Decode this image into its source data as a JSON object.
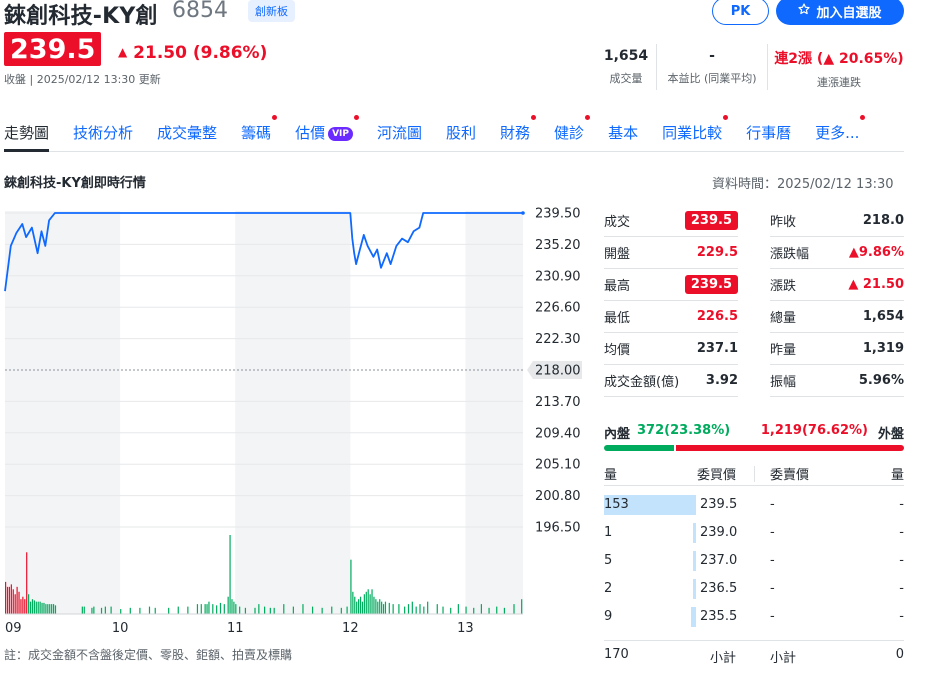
{
  "header": {
    "name": "錸創科技-KY創",
    "code": "6854",
    "board_badge": "創新板",
    "pk_label": "PK",
    "watch_label": "加入自選股",
    "price": "239.5",
    "change": "21.50 (9.86%)",
    "close_info": "收盤 | 2025/02/12 13:30 更新"
  },
  "summary": [
    {
      "value": "1,654",
      "label": "成交量"
    },
    {
      "value": "-",
      "label": "本益比 (同業平均)"
    },
    {
      "value": "連2漲 (▲ 20.65%)",
      "label": "連漲連跌"
    }
  ],
  "tabs": [
    {
      "label": "走勢圖",
      "active": true,
      "dot": false,
      "vip": false
    },
    {
      "label": "技術分析",
      "dot": false
    },
    {
      "label": "成交彙整",
      "dot": false
    },
    {
      "label": "籌碼",
      "dot": true
    },
    {
      "label": "估價",
      "dot": true,
      "vip": true
    },
    {
      "label": "河流圖",
      "dot": false
    },
    {
      "label": "股利",
      "dot": false
    },
    {
      "label": "財務",
      "dot": true
    },
    {
      "label": "健診",
      "dot": true
    },
    {
      "label": "基本",
      "dot": false
    },
    {
      "label": "同業比較",
      "dot": true
    },
    {
      "label": "行事曆",
      "dot": false
    },
    {
      "label": "更多...",
      "dot": true
    }
  ],
  "vip_label": "VIP",
  "section_title": "錸創科技-KY創即時行情",
  "data_time": "資料時間：2025/02/12 13:30",
  "chart_data": {
    "type": "line",
    "x_ticks": [
      "09",
      "10",
      "11",
      "12",
      "13"
    ],
    "y_ticks": [
      "239.50",
      "235.20",
      "230.90",
      "226.60",
      "222.30",
      "218.00",
      "213.70",
      "209.40",
      "205.10",
      "200.80",
      "196.50"
    ],
    "ylim": [
      196.5,
      239.5
    ],
    "reference_price": "218.00",
    "price_series": [
      [
        0,
        228.8
      ],
      [
        3,
        235.0
      ],
      [
        6,
        236.8
      ],
      [
        9,
        238.0
      ],
      [
        11,
        236.2
      ],
      [
        14,
        237.5
      ],
      [
        17,
        234.0
      ],
      [
        19,
        237.0
      ],
      [
        21,
        235.0
      ],
      [
        23,
        238.5
      ],
      [
        26,
        239.5
      ],
      [
        80,
        239.5
      ],
      [
        135,
        239.5
      ],
      [
        180,
        239.5
      ],
      [
        181,
        236.0
      ],
      [
        182,
        234.0
      ],
      [
        183,
        232.5
      ],
      [
        185,
        234.5
      ],
      [
        187,
        236.5
      ],
      [
        189,
        235.0
      ],
      [
        192,
        233.5
      ],
      [
        194,
        234.5
      ],
      [
        196,
        232.0
      ],
      [
        199,
        234.0
      ],
      [
        201,
        232.5
      ],
      [
        204,
        235.0
      ],
      [
        207,
        236.0
      ],
      [
        210,
        235.5
      ],
      [
        213,
        237.0
      ],
      [
        216,
        237.5
      ],
      [
        218,
        239.5
      ],
      [
        270,
        239.5
      ]
    ],
    "volume_series": [
      [
        0,
        26
      ],
      [
        1,
        22
      ],
      [
        2,
        22
      ],
      [
        3,
        24
      ],
      [
        4,
        20
      ],
      [
        5,
        16
      ],
      [
        6,
        22
      ],
      [
        7,
        18
      ],
      [
        8,
        12
      ],
      [
        9,
        14
      ],
      [
        10,
        12
      ],
      [
        11,
        50
      ],
      [
        12,
        16
      ],
      [
        13,
        10
      ],
      [
        14,
        12
      ],
      [
        15,
        11
      ],
      [
        16,
        10
      ],
      [
        17,
        10
      ],
      [
        18,
        10
      ],
      [
        19,
        9
      ],
      [
        20,
        9
      ],
      [
        21,
        8
      ],
      [
        22,
        8
      ],
      [
        23,
        8
      ],
      [
        24,
        8
      ],
      [
        25,
        8
      ],
      [
        26,
        7
      ],
      [
        40,
        6
      ],
      [
        41,
        6
      ],
      [
        45,
        5
      ],
      [
        46,
        6
      ],
      [
        50,
        5
      ],
      [
        52,
        6
      ],
      [
        55,
        6
      ],
      [
        60,
        4
      ],
      [
        65,
        5
      ],
      [
        70,
        5
      ],
      [
        75,
        6
      ],
      [
        78,
        5
      ],
      [
        85,
        5
      ],
      [
        90,
        6
      ],
      [
        95,
        6
      ],
      [
        100,
        8
      ],
      [
        102,
        8
      ],
      [
        104,
        8
      ],
      [
        105,
        8
      ],
      [
        106,
        10
      ],
      [
        108,
        8
      ],
      [
        110,
        7
      ],
      [
        112,
        9
      ],
      [
        114,
        8
      ],
      [
        116,
        14
      ],
      [
        117,
        64
      ],
      [
        118,
        12
      ],
      [
        119,
        10
      ],
      [
        120,
        8
      ],
      [
        122,
        6
      ],
      [
        125,
        5
      ],
      [
        130,
        5
      ],
      [
        132,
        8
      ],
      [
        135,
        6
      ],
      [
        138,
        5
      ],
      [
        140,
        5
      ],
      [
        145,
        8
      ],
      [
        150,
        6
      ],
      [
        155,
        8
      ],
      [
        160,
        6
      ],
      [
        165,
        5
      ],
      [
        170,
        6
      ],
      [
        175,
        5
      ],
      [
        178,
        6
      ],
      [
        180,
        44
      ],
      [
        181,
        18
      ],
      [
        182,
        14
      ],
      [
        183,
        10
      ],
      [
        184,
        12
      ],
      [
        185,
        14
      ],
      [
        186,
        10
      ],
      [
        187,
        16
      ],
      [
        188,
        18
      ],
      [
        189,
        20
      ],
      [
        190,
        16
      ],
      [
        191,
        20
      ],
      [
        192,
        14
      ],
      [
        193,
        12
      ],
      [
        194,
        10
      ],
      [
        195,
        12
      ],
      [
        196,
        10
      ],
      [
        197,
        8
      ],
      [
        198,
        10
      ],
      [
        200,
        9
      ],
      [
        202,
        8
      ],
      [
        205,
        8
      ],
      [
        208,
        6
      ],
      [
        210,
        8
      ],
      [
        212,
        10
      ],
      [
        214,
        6
      ],
      [
        216,
        8
      ],
      [
        218,
        6
      ],
      [
        220,
        10
      ],
      [
        225,
        8
      ],
      [
        228,
        6
      ],
      [
        232,
        5
      ],
      [
        236,
        8
      ],
      [
        240,
        6
      ],
      [
        244,
        5
      ],
      [
        248,
        8
      ],
      [
        252,
        5
      ],
      [
        256,
        6
      ],
      [
        260,
        5
      ],
      [
        265,
        8
      ],
      [
        269,
        12
      ]
    ]
  },
  "stats": {
    "left": [
      {
        "label": "成交",
        "value": "239.5",
        "style": "pill"
      },
      {
        "label": "開盤",
        "value": "229.5",
        "style": "red"
      },
      {
        "label": "最高",
        "value": "239.5",
        "style": "pill"
      },
      {
        "label": "最低",
        "value": "226.5",
        "style": "red"
      },
      {
        "label": "均價",
        "value": "237.1",
        "style": "plain"
      },
      {
        "label": "成交金額(億)",
        "value": "3.92",
        "style": "plain"
      }
    ],
    "right": [
      {
        "label": "昨收",
        "value": "218.0",
        "style": "plain"
      },
      {
        "label": "漲跌幅",
        "value": "▲9.86%",
        "style": "red"
      },
      {
        "label": "漲跌",
        "value": "▲ 21.50",
        "style": "red"
      },
      {
        "label": "總量",
        "value": "1,654",
        "style": "plain"
      },
      {
        "label": "昨量",
        "value": "1,319",
        "style": "plain"
      },
      {
        "label": "振幅",
        "value": "5.96%",
        "style": "plain"
      }
    ]
  },
  "in_out": {
    "in_label": "內盤",
    "in_value": "372(23.38%)",
    "in_fraction": 0.2338,
    "out_value": "1,219(76.62%)",
    "out_label": "外盤"
  },
  "book": {
    "head": [
      "量",
      "委買價",
      "委賣價",
      "量"
    ],
    "rows": [
      {
        "bid_vol": "153",
        "bid_price": "239.5",
        "ask_price": "-",
        "ask_vol": "-",
        "bar": 1.0
      },
      {
        "bid_vol": "1",
        "bid_price": "239.0",
        "ask_price": "-",
        "ask_vol": "-",
        "bar": 0.0065
      },
      {
        "bid_vol": "5",
        "bid_price": "237.0",
        "ask_price": "-",
        "ask_vol": "-",
        "bar": 0.033
      },
      {
        "bid_vol": "2",
        "bid_price": "236.5",
        "ask_price": "-",
        "ask_vol": "-",
        "bar": 0.013
      },
      {
        "bid_vol": "9",
        "bid_price": "235.5",
        "ask_price": "-",
        "ask_vol": "-",
        "bar": 0.059
      }
    ],
    "total_bid": "170",
    "subtotal_label": "小計",
    "subtotal_label2": "小計",
    "total_ask": "0"
  },
  "footnote": "註：成交金額不含盤後定價、零股、鉅額、拍賣及標購"
}
